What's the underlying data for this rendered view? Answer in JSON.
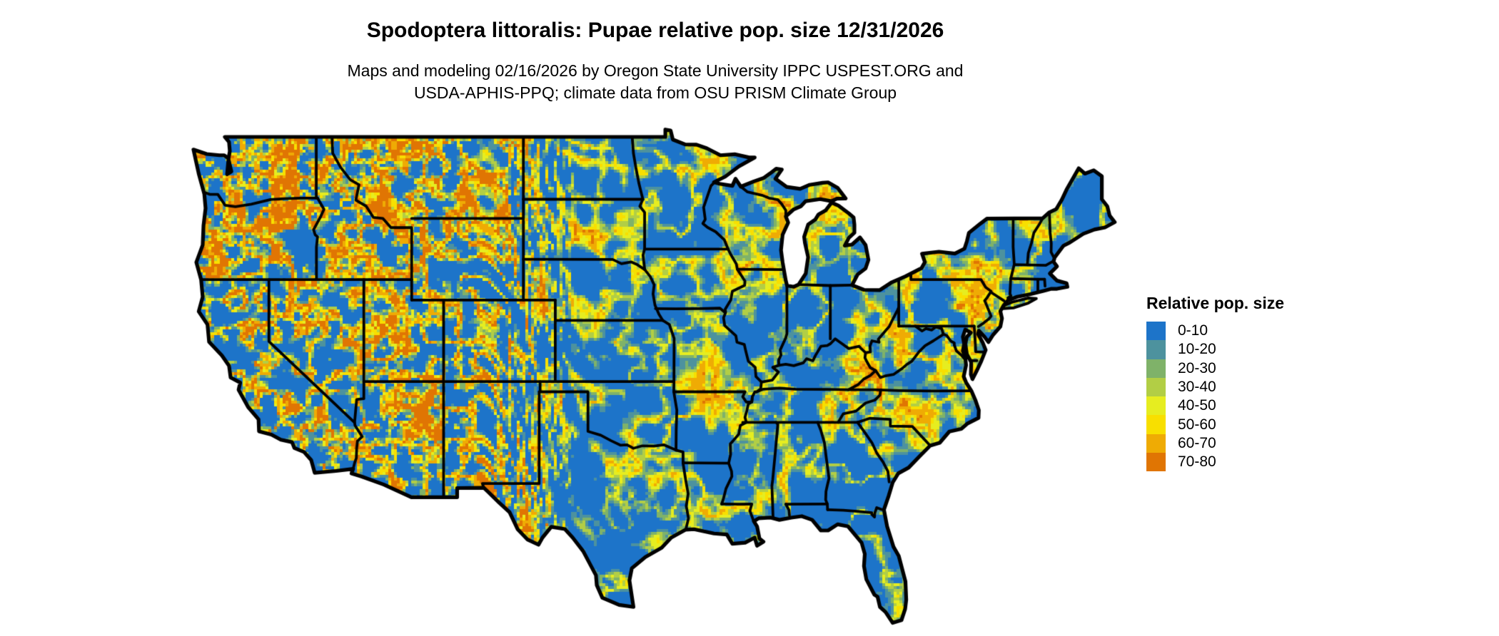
{
  "header": {
    "title": "Spodoptera littoralis: Pupae relative pop. size 12/31/2026",
    "subtitle_line1": "Maps and modeling 02/16/2026 by Oregon State University IPPC USPEST.ORG and",
    "subtitle_line2": "USDA-APHIS-PPQ; climate data from OSU PRISM Climate Group"
  },
  "legend": {
    "title": "Relative pop. size",
    "classes": [
      {
        "label": "0-10",
        "color": "#1d74c9"
      },
      {
        "label": "10-20",
        "color": "#4d929e"
      },
      {
        "label": "20-30",
        "color": "#7fb269"
      },
      {
        "label": "30-40",
        "color": "#b2ce45"
      },
      {
        "label": "40-50",
        "color": "#e6ed20"
      },
      {
        "label": "50-60",
        "color": "#f8df00"
      },
      {
        "label": "60-70",
        "color": "#efab04"
      },
      {
        "label": "70-80",
        "color": "#e07503"
      }
    ]
  },
  "map": {
    "region": "Continental United States",
    "border_color": "#000000",
    "background": "#ffffff"
  }
}
